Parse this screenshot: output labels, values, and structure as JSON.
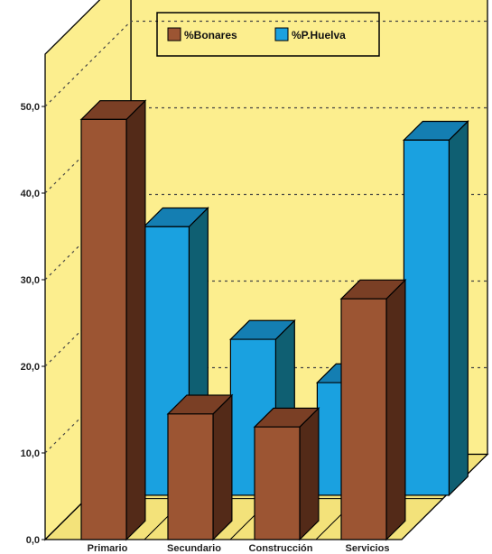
{
  "chart_data": {
    "type": "bar",
    "categories": [
      "Primario",
      "Secundario",
      "Construcción",
      "Servicios"
    ],
    "series": [
      {
        "name": "%Bonares",
        "values": [
          48.5,
          14.5,
          13.0,
          27.8
        ]
      },
      {
        "name": "%P.Huelva",
        "values": [
          31.0,
          18.0,
          13.0,
          41.0
        ]
      }
    ],
    "y_ticks": [
      "0,0",
      "10,0",
      "20,0",
      "30,0",
      "40,0",
      "50,0"
    ],
    "ylim": [
      0,
      50
    ],
    "grid": true,
    "legend_position": "top-center",
    "style": "3d"
  },
  "colors": {
    "series_front": [
      "#9C5533",
      "#1AA1E0"
    ],
    "series_top": [
      "#7A3F25",
      "#147EB2"
    ],
    "series_side": [
      "#532A18",
      "#0F5F72"
    ],
    "wall": "#FCEE8E",
    "floor": "#F3E27A",
    "outline": "#000000",
    "grid": "#444444"
  }
}
